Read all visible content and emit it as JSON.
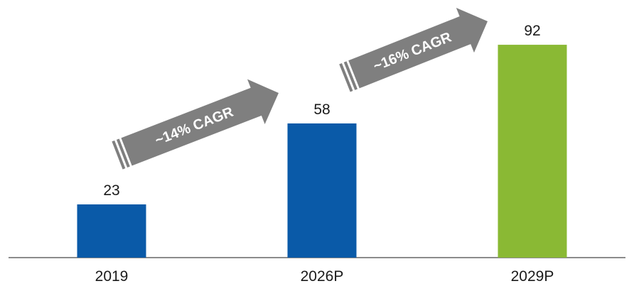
{
  "chart_data": {
    "type": "bar",
    "title": "",
    "xlabel": "",
    "ylabel": "",
    "categories": [
      "2019",
      "2026P",
      "2029P"
    ],
    "values": [
      23,
      58,
      92
    ],
    "ylim": [
      0,
      100
    ],
    "bar_colors": [
      "#0a5aa8",
      "#0a5aa8",
      "#8ab934"
    ],
    "axis_color": "#8c8c8c",
    "annotations": [
      {
        "text": "~14% CAGR",
        "from": "2019",
        "to": "2026P",
        "color": "#7f7f7f"
      },
      {
        "text": "~16% CAGR",
        "from": "2026P",
        "to": "2029P",
        "color": "#7f7f7f"
      }
    ]
  }
}
